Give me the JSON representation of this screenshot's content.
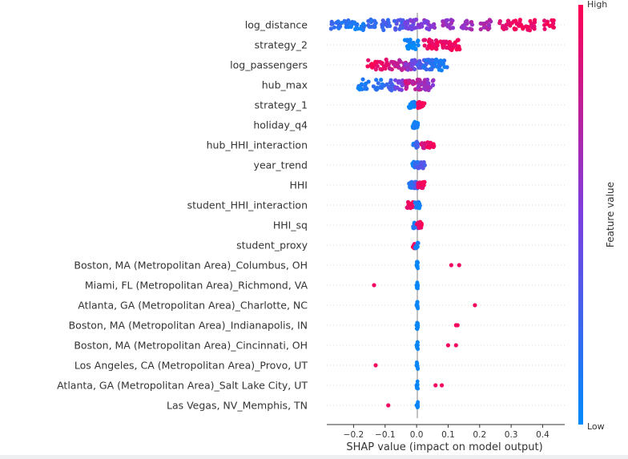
{
  "chart_data": {
    "type": "scatter",
    "subtype": "shap-beeswarm",
    "title": "",
    "xlabel": "SHAP value (impact on model output)",
    "ylabel": "",
    "xlim": [
      -0.285,
      0.47
    ],
    "x_ticks": [
      -0.2,
      -0.1,
      0.0,
      0.1,
      0.2,
      0.3,
      0.4
    ],
    "x_tick_labels": [
      "−0.2",
      "−0.1",
      "0.0",
      "0.1",
      "0.2",
      "0.3",
      "0.4"
    ],
    "grid": false,
    "colorbar": {
      "label": "Feature value",
      "high_label": "High",
      "low_label": "Low",
      "colors": [
        "#008bfb",
        "#7c3ee0",
        "#ff0052"
      ]
    },
    "features": [
      {
        "name": "log_distance",
        "points": [
          [
            -0.26,
            0.2
          ],
          [
            -0.22,
            0.15
          ],
          [
            -0.18,
            0.1
          ],
          [
            -0.14,
            0.2
          ],
          [
            -0.1,
            0.25
          ],
          [
            -0.06,
            0.3
          ],
          [
            -0.02,
            0.45
          ],
          [
            0.0,
            0.5
          ],
          [
            0.04,
            0.55
          ],
          [
            0.1,
            0.6
          ],
          [
            0.16,
            0.62
          ],
          [
            0.22,
            0.7
          ],
          [
            0.28,
            0.9
          ],
          [
            0.32,
            0.95
          ],
          [
            0.36,
            0.9
          ],
          [
            0.42,
            0.95
          ]
        ]
      },
      {
        "name": "strategy_2",
        "points": [
          [
            -0.02,
            0.05
          ],
          [
            -0.01,
            0.05
          ],
          [
            0.04,
            0.95
          ],
          [
            0.07,
            0.95
          ],
          [
            0.1,
            0.95
          ],
          [
            0.12,
            0.95
          ]
        ]
      },
      {
        "name": "log_passengers",
        "points": [
          [
            -0.14,
            0.95
          ],
          [
            -0.1,
            0.9
          ],
          [
            -0.08,
            0.85
          ],
          [
            -0.05,
            0.75
          ],
          [
            -0.02,
            0.6
          ],
          [
            0.0,
            0.4
          ],
          [
            0.02,
            0.3
          ],
          [
            0.04,
            0.2
          ],
          [
            0.06,
            0.15
          ],
          [
            0.08,
            0.1
          ]
        ]
      },
      {
        "name": "hub_max",
        "points": [
          [
            -0.17,
            0.1
          ],
          [
            -0.12,
            0.15
          ],
          [
            -0.08,
            0.25
          ],
          [
            -0.05,
            0.5
          ],
          [
            -0.02,
            0.8
          ],
          [
            0.0,
            0.75
          ],
          [
            0.02,
            0.65
          ],
          [
            0.04,
            0.6
          ]
        ]
      },
      {
        "name": "strategy_1",
        "points": [
          [
            -0.02,
            0.05
          ],
          [
            -0.01,
            0.05
          ],
          [
            0.01,
            0.95
          ],
          [
            0.02,
            0.95
          ]
        ]
      },
      {
        "name": "holiday_q4",
        "points": [
          [
            -0.01,
            0.05
          ],
          [
            0.0,
            0.05
          ]
        ]
      },
      {
        "name": "hub_HHI_interaction",
        "points": [
          [
            -0.005,
            0.1
          ],
          [
            0.0,
            0.3
          ],
          [
            0.02,
            0.85
          ],
          [
            0.04,
            0.95
          ],
          [
            0.05,
            0.95
          ]
        ]
      },
      {
        "name": "year_trend",
        "points": [
          [
            -0.01,
            0.1
          ],
          [
            0.0,
            0.2
          ],
          [
            0.01,
            0.3
          ],
          [
            0.02,
            0.35
          ]
        ]
      },
      {
        "name": "HHI",
        "points": [
          [
            -0.02,
            0.1
          ],
          [
            -0.01,
            0.2
          ],
          [
            0.0,
            0.3
          ],
          [
            0.01,
            0.9
          ],
          [
            0.02,
            0.95
          ]
        ]
      },
      {
        "name": "student_HHI_interaction",
        "points": [
          [
            -0.025,
            0.95
          ],
          [
            -0.015,
            0.95
          ],
          [
            0.0,
            0.1
          ],
          [
            0.005,
            0.1
          ]
        ]
      },
      {
        "name": "HHI_sq",
        "points": [
          [
            -0.005,
            0.1
          ],
          [
            0.0,
            0.15
          ],
          [
            0.005,
            0.85
          ],
          [
            0.01,
            0.95
          ]
        ]
      },
      {
        "name": "student_proxy",
        "points": [
          [
            -0.01,
            0.95
          ],
          [
            0.0,
            0.1
          ]
        ]
      },
      {
        "name": "Boston, MA (Metropolitan Area)_Columbus, OH",
        "points": [
          [
            0.0,
            0.05
          ],
          [
            0.11,
            0.95
          ],
          [
            0.135,
            0.95
          ]
        ]
      },
      {
        "name": "Miami, FL (Metropolitan Area)_Richmond, VA",
        "points": [
          [
            -0.135,
            0.95
          ],
          [
            0.0,
            0.05
          ]
        ]
      },
      {
        "name": "Atlanta, GA (Metropolitan Area)_Charlotte, NC",
        "points": [
          [
            0.0,
            0.05
          ],
          [
            0.185,
            0.95
          ]
        ]
      },
      {
        "name": "Boston, MA (Metropolitan Area)_Indianapolis, IN",
        "points": [
          [
            0.0,
            0.05
          ],
          [
            0.125,
            0.95
          ],
          [
            0.13,
            0.95
          ]
        ]
      },
      {
        "name": "Boston, MA (Metropolitan Area)_Cincinnati, OH",
        "points": [
          [
            0.0,
            0.05
          ],
          [
            0.1,
            0.95
          ],
          [
            0.125,
            0.95
          ]
        ]
      },
      {
        "name": "Los Angeles, CA (Metropolitan Area)_Provo, UT",
        "points": [
          [
            -0.13,
            0.95
          ],
          [
            0.0,
            0.05
          ]
        ]
      },
      {
        "name": "Atlanta, GA (Metropolitan Area)_Salt Lake City, UT",
        "points": [
          [
            0.0,
            0.05
          ],
          [
            0.06,
            0.95
          ],
          [
            0.08,
            0.95
          ]
        ]
      },
      {
        "name": "Las Vegas, NV_Memphis, TN",
        "points": [
          [
            -0.09,
            0.95
          ],
          [
            0.0,
            0.05
          ]
        ]
      }
    ]
  }
}
